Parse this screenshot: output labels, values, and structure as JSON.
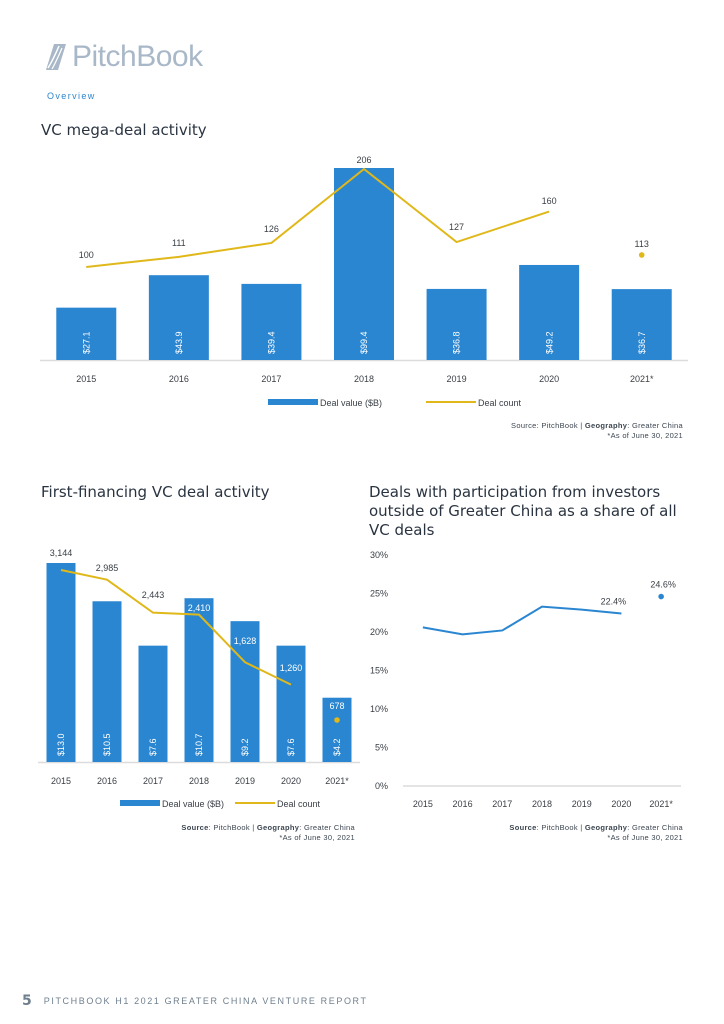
{
  "brand": {
    "name": "PitchBook",
    "logo_color": "#a9b8c8"
  },
  "section": "Overview",
  "colors": {
    "bar": "#2a86d1",
    "line": "#e0b81a",
    "share_line": "#2a86d1",
    "axis": "#dcdcdc",
    "text": "#3a3f45"
  },
  "footer": {
    "page_number": "5",
    "report_title": "PITCHBOOK H1 2021 GREATER CHINA VENTURE REPORT"
  },
  "chart_data": [
    {
      "id": "mega",
      "type": "bar",
      "title": "VC mega-deal activity",
      "categories": [
        "2015",
        "2016",
        "2017",
        "2018",
        "2019",
        "2020",
        "2021*"
      ],
      "series": [
        {
          "name": "Deal value ($B)",
          "kind": "bar",
          "values": [
            27.1,
            43.9,
            39.4,
            99.4,
            36.8,
            49.2,
            36.7
          ],
          "labels": [
            "$27.1",
            "$43.9",
            "$39.4",
            "$99.4",
            "$36.8",
            "$49.2",
            "$36.7"
          ]
        },
        {
          "name": "Deal count",
          "kind": "line",
          "values": [
            100,
            111,
            126,
            206,
            127,
            160,
            113
          ],
          "labels": [
            "100",
            "111",
            "126",
            "206",
            "127",
            "160",
            "113"
          ],
          "last_point_separate": true
        }
      ],
      "legend": [
        "Deal value ($B)",
        "Deal count"
      ],
      "legend_position": "bottom",
      "source": {
        "label": "Source",
        "value": "PitchBook",
        "geo_label": "Geography",
        "geo_value": "Greater China"
      },
      "note": "*As of June 30, 2021",
      "grid": false
    },
    {
      "id": "first",
      "type": "bar",
      "title": "First-financing VC deal activity",
      "categories": [
        "2015",
        "2016",
        "2017",
        "2018",
        "2019",
        "2020",
        "2021*"
      ],
      "series": [
        {
          "name": "Deal value ($B)",
          "kind": "bar",
          "values": [
            13.0,
            10.5,
            7.6,
            10.7,
            9.2,
            7.6,
            4.2
          ],
          "labels": [
            "$13.0",
            "$10.5",
            "$7.6",
            "$10.7",
            "$9.2",
            "$7.6",
            "$4.2"
          ]
        },
        {
          "name": "Deal count",
          "kind": "line",
          "values": [
            3144,
            2985,
            2443,
            2410,
            1628,
            1260,
            678
          ],
          "labels": [
            "3,144",
            "2,985",
            "2,443",
            "2,410",
            "1,628",
            "1,260",
            "678"
          ],
          "last_point_separate": true
        }
      ],
      "legend": [
        "Deal value ($B)",
        "Deal count"
      ],
      "legend_position": "bottom",
      "source": {
        "label": "Source",
        "value": "PitchBook",
        "geo_label": "Geography",
        "geo_value": "Greater China"
      },
      "note": "*As of June 30, 2021",
      "grid": false
    },
    {
      "id": "share",
      "type": "line",
      "title": "Deals with participation from investors outside of Greater China as a share of all VC deals",
      "categories": [
        "2015",
        "2016",
        "2017",
        "2018",
        "2019",
        "2020",
        "2021*"
      ],
      "series": [
        {
          "name": "Share of deals",
          "values": [
            20.6,
            19.7,
            20.2,
            23.3,
            22.9,
            22.4,
            24.6
          ],
          "labels": [
            "",
            "",
            "",
            "",
            "",
            "22.4%",
            "24.6%"
          ],
          "last_point_separate": true
        }
      ],
      "yticks": [
        "0%",
        "5%",
        "10%",
        "15%",
        "20%",
        "25%",
        "30%"
      ],
      "ylim": [
        0,
        30
      ],
      "ylabel": "",
      "source": {
        "label": "Source",
        "value": "PitchBook",
        "geo_label": "Geography",
        "geo_value": "Greater China"
      },
      "note": "*As of June 30, 2021",
      "grid": false
    }
  ]
}
